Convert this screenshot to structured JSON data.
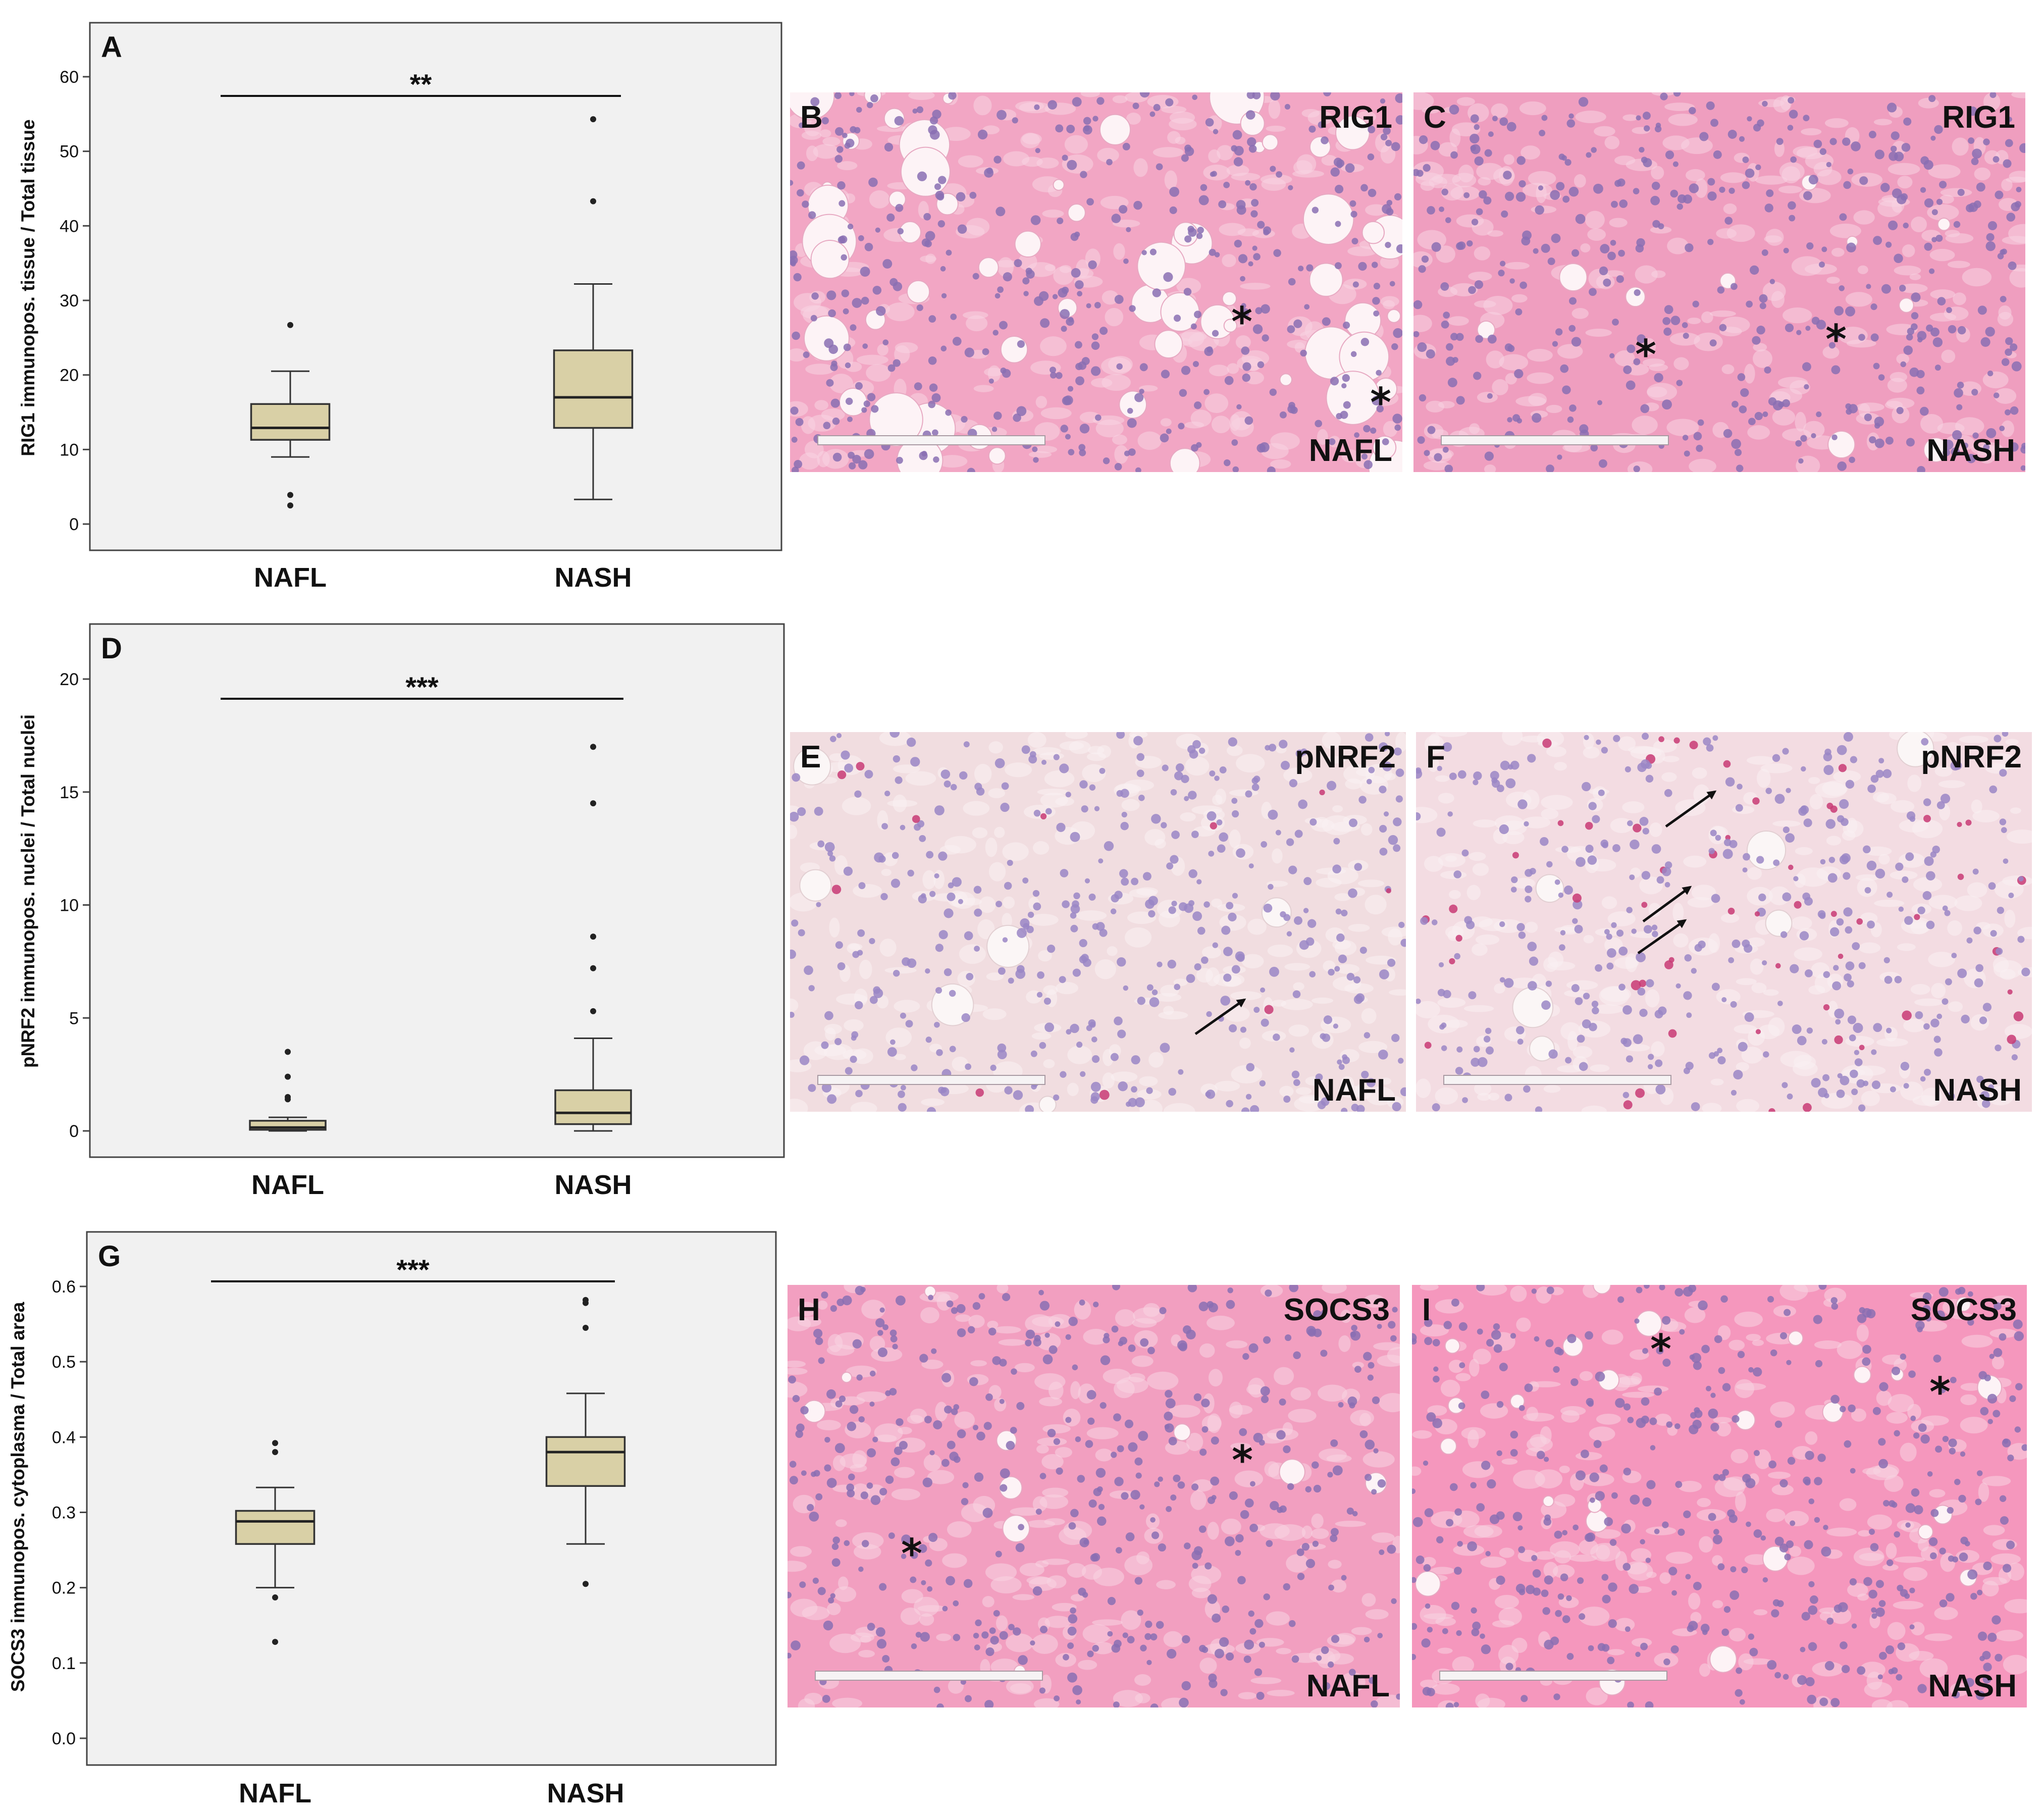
{
  "chart_data": [
    {
      "type": "box",
      "panel": "A",
      "ylabel": "RIG1 immunopos. tissue / Total tissue",
      "ylim": [
        0,
        60
      ],
      "yticks": [
        0,
        10,
        20,
        30,
        40,
        50,
        60
      ],
      "categories": [
        "NAFL",
        "NASH"
      ],
      "significance": "**",
      "boxes": [
        {
          "category": "NAFL",
          "whisker_low": 9,
          "q1": 11.3,
          "median": 12.9,
          "q3": 16.1,
          "whisker_high": 20.5,
          "outliers": [
            2.5,
            3.9,
            26.7
          ]
        },
        {
          "category": "NASH",
          "whisker_low": 3.3,
          "q1": 12.9,
          "median": 17,
          "q3": 23.3,
          "whisker_high": 32.2,
          "outliers": [
            43.3,
            54.3
          ]
        }
      ]
    },
    {
      "type": "box",
      "panel": "D",
      "ylabel": "pNRF2 immunopos. nuclei / Total nuclei",
      "ylim": [
        0,
        20
      ],
      "yticks": [
        0,
        5,
        10,
        15,
        20
      ],
      "categories": [
        "NAFL",
        "NASH"
      ],
      "significance": "***",
      "boxes": [
        {
          "category": "NAFL",
          "whisker_low": 0,
          "q1": 0.05,
          "median": 0.15,
          "q3": 0.45,
          "whisker_high": 0.6,
          "outliers": [
            1.4,
            1.5,
            2.4,
            3.5
          ]
        },
        {
          "category": "NASH",
          "whisker_low": 0,
          "q1": 0.3,
          "median": 0.8,
          "q3": 1.8,
          "whisker_high": 4.1,
          "outliers": [
            5.3,
            7.2,
            8.6,
            14.5,
            17
          ]
        }
      ]
    },
    {
      "type": "box",
      "panel": "G",
      "ylabel": "SOCS3 immunopos. cytoplasma / Total area",
      "ylim": [
        0,
        0.6
      ],
      "yticks": [
        "0.0",
        "0.1",
        "0.2",
        "0.3",
        "0.4",
        "0.5",
        "0.6"
      ],
      "categories": [
        "NAFL",
        "NASH"
      ],
      "significance": "***",
      "boxes": [
        {
          "category": "NAFL",
          "whisker_low": 0.2,
          "q1": 0.258,
          "median": 0.288,
          "q3": 0.302,
          "whisker_high": 0.333,
          "outliers": [
            0.128,
            0.187,
            0.38,
            0.392
          ]
        },
        {
          "category": "NASH",
          "whisker_low": 0.258,
          "q1": 0.335,
          "median": 0.38,
          "q3": 0.4,
          "whisker_high": 0.458,
          "outliers": [
            0.205,
            0.545,
            0.578,
            0.582
          ]
        }
      ]
    }
  ],
  "images": [
    {
      "letter": "B",
      "marker": "RIG1",
      "group": "NAFL",
      "stars": 2,
      "stain": "#f2a6c4"
    },
    {
      "letter": "C",
      "marker": "RIG1",
      "group": "NASH",
      "stars": 2,
      "stain": "#ef9ebf"
    },
    {
      "letter": "E",
      "marker": "pNRF2",
      "group": "NAFL",
      "stars": 0,
      "stain": "#f1dde0"
    },
    {
      "letter": "F",
      "marker": "pNRF2",
      "group": "NASH",
      "stars": 0,
      "stain": "#f3dce2"
    },
    {
      "letter": "H",
      "marker": "SOCS3",
      "group": "NAFL",
      "stars": 2,
      "stain": "#f29fc0"
    },
    {
      "letter": "I",
      "marker": "SOCS3",
      "group": "NASH",
      "stars": 2,
      "stain": "#f597bd"
    }
  ],
  "colors": {
    "box_fill": "#d9d0a6",
    "plot_bg": "#f1f1f1"
  }
}
